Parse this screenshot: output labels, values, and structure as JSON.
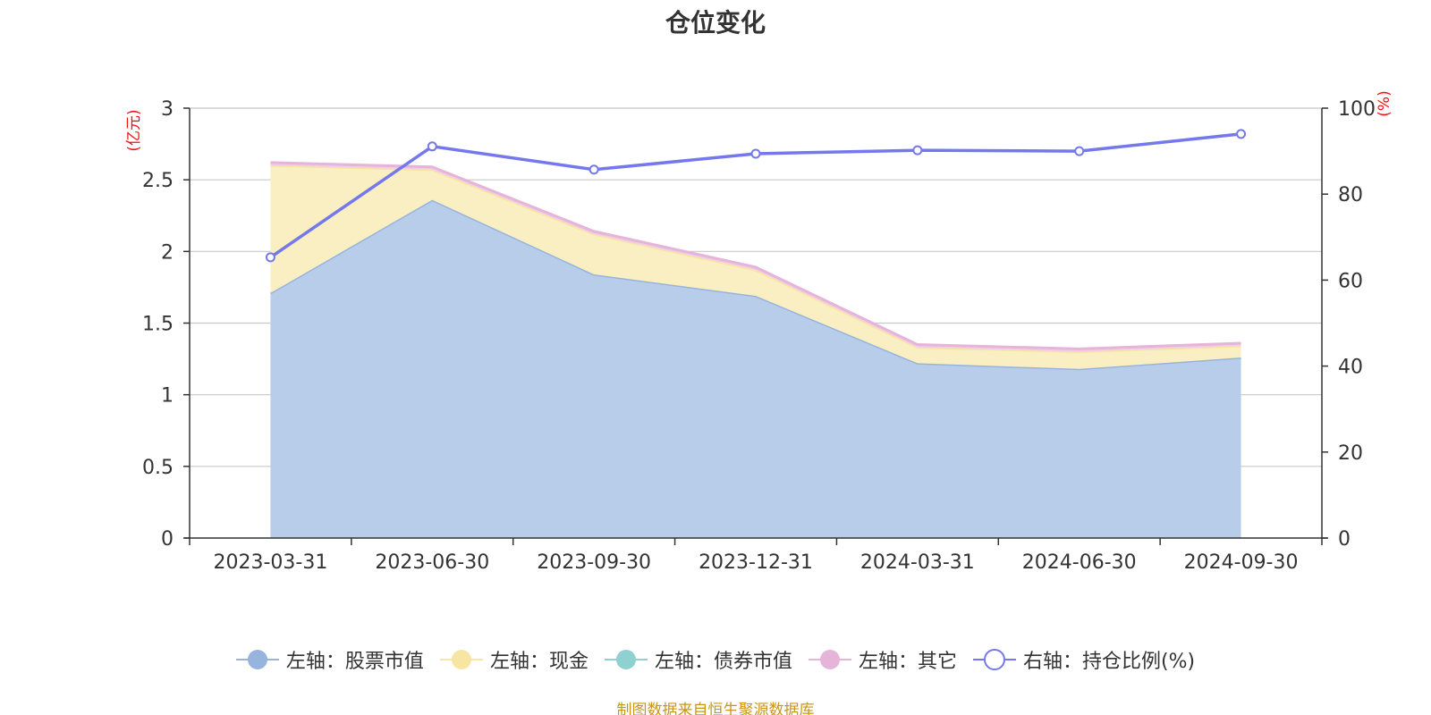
{
  "chart_data": {
    "type": "area",
    "title": "仓位变化",
    "categories": [
      "2023-03-31",
      "2023-06-30",
      "2023-09-30",
      "2023-12-31",
      "2024-03-31",
      "2024-06-30",
      "2024-09-30"
    ],
    "left_axis": {
      "unit": "(亿元)",
      "ylim": [
        0,
        3
      ],
      "ticks": [
        0,
        0.5,
        1,
        1.5,
        2,
        2.5,
        3
      ],
      "tick_labels": [
        "0",
        "0.5",
        "1",
        "1.5",
        "2",
        "2.5",
        "3"
      ]
    },
    "right_axis": {
      "unit": "(%)",
      "ylim": [
        0,
        100
      ],
      "ticks": [
        0,
        20,
        40,
        60,
        80,
        100
      ],
      "tick_labels": [
        "0",
        "20",
        "40",
        "60",
        "80",
        "100"
      ]
    },
    "series": [
      {
        "name": "左轴：股票市值",
        "axis": "left",
        "kind": "stacked-area",
        "color": "#97b4de",
        "fill": "#b8cdea",
        "values": [
          1.71,
          2.36,
          1.84,
          1.69,
          1.22,
          1.18,
          1.26
        ]
      },
      {
        "name": "左轴：现金",
        "axis": "left",
        "kind": "stacked-area",
        "color": "#f6e6a2",
        "fill": "#faefc2",
        "values": [
          0.89,
          0.21,
          0.28,
          0.18,
          0.11,
          0.12,
          0.08
        ]
      },
      {
        "name": "左轴：债券市值",
        "axis": "left",
        "kind": "stacked-area",
        "color": "#8fd1d1",
        "fill": "#b7e3e3",
        "values": [
          0,
          0,
          0,
          0,
          0,
          0,
          0
        ]
      },
      {
        "name": "左轴：其它",
        "axis": "left",
        "kind": "stacked-area",
        "color": "#e6b4d9",
        "fill": "#f0cde7",
        "values": [
          0.02,
          0.02,
          0.02,
          0.02,
          0.02,
          0.02,
          0.02
        ]
      },
      {
        "name": "右轴：持仓比例(%)",
        "axis": "right",
        "kind": "line",
        "color": "#7578ec",
        "values": [
          65.3,
          91.1,
          85.7,
          89.4,
          90.2,
          90.0,
          94.0
        ]
      }
    ],
    "legend_position": "bottom",
    "source": "制图数据来自恒生聚源数据库"
  }
}
